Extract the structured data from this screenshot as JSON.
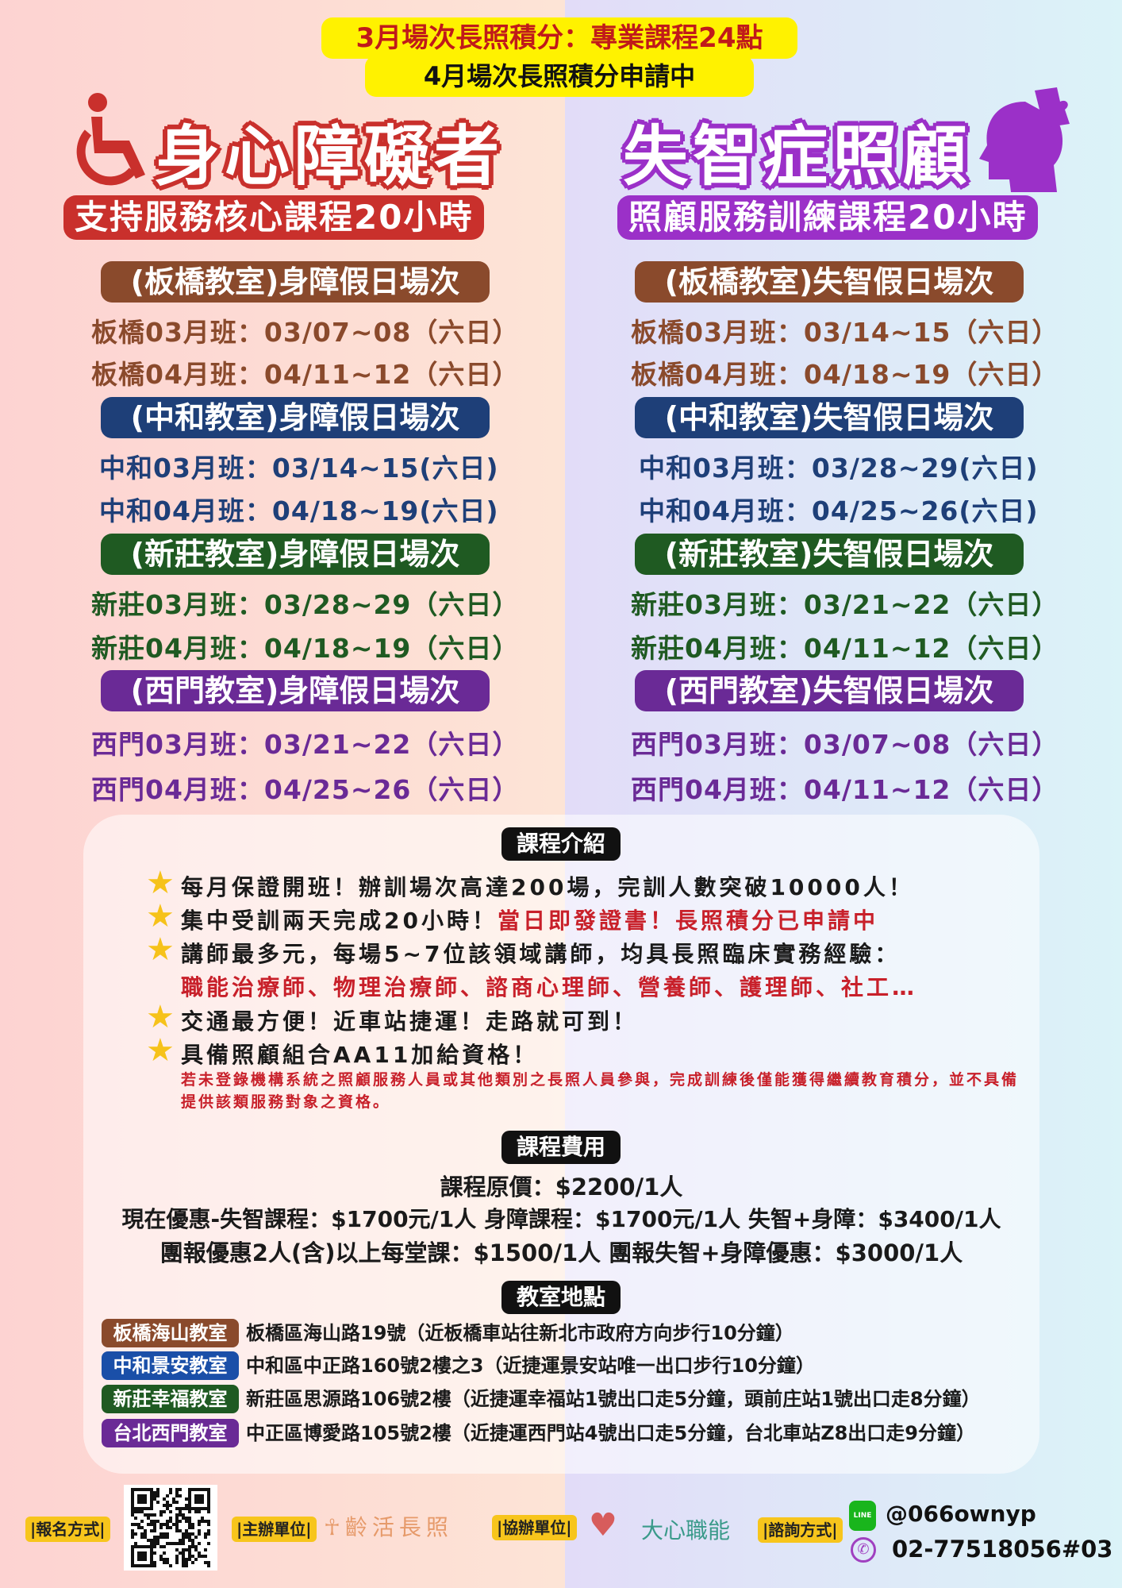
{
  "banner": {
    "line1": "3月場次長照積分：專業課程24點",
    "line2": "4月場次長照積分申請中"
  },
  "left": {
    "title": "身心障礙者",
    "subtitle": "支持服務核心課程20小時",
    "icon": "wheelchair-icon",
    "sections": [
      {
        "title": "(板橋教室)身障假日場次",
        "color": "#8a4a2c",
        "rows": [
          "板橋03月班：03/07~08（六日）",
          "板橋04月班：04/11~12（六日）"
        ]
      },
      {
        "title": "(中和教室)身障假日場次",
        "color": "#1e3f78",
        "rows": [
          "中和03月班：03/14~15(六日)",
          "中和04月班：04/18~19(六日)"
        ]
      },
      {
        "title": "(新莊教室)身障假日場次",
        "color": "#1f5a22",
        "rows": [
          "新莊03月班：03/28~29（六日）",
          "新莊04月班：04/18~19（六日）"
        ]
      },
      {
        "title": "(西門教室)身障假日場次",
        "color": "#6a2a96",
        "rows": [
          "西門03月班：03/21~22（六日）",
          "西門04月班：04/25~26（六日）"
        ]
      }
    ]
  },
  "right": {
    "title": "失智症照顧",
    "subtitle": "照顧服務訓練課程20小時",
    "icon": "head-puzzle-icon",
    "sections": [
      {
        "title": "(板橋教室)失智假日場次",
        "color": "#8a4a2c",
        "rows": [
          "板橋03月班：03/14~15（六日）",
          "板橋04月班：04/18~19（六日）"
        ]
      },
      {
        "title": "(中和教室)失智假日場次",
        "color": "#1e3f78",
        "rows": [
          "中和03月班：03/28~29(六日)",
          "中和04月班：04/25~26(六日)"
        ]
      },
      {
        "title": "(新莊教室)失智假日場次",
        "color": "#1f5a22",
        "rows": [
          "新莊03月班：03/21~22（六日）",
          "新莊04月班：04/11~12（六日）"
        ]
      },
      {
        "title": "(西門教室)失智假日場次",
        "color": "#6a2a96",
        "rows": [
          "西門03月班：03/07~08（六日）",
          "西門04月班：04/11~12（六日）"
        ]
      }
    ]
  },
  "intro": {
    "header": "課程介紹",
    "b1": "每月保證開班！辦訓場次高達200場，完訓人數突破10000人！",
    "b2a": "集中受訓兩天完成20小時！",
    "b2b": "當日即發證書！長照積分已申請中",
    "b3": "講師最多元，每場5~7位該領域講師，均具長照臨床實務經驗：",
    "b3b": "職能治療師、物理治療師、諮商心理師、營養師、護理師、社工…",
    "b4": "交通最方便！近車站捷運！走路就可到！",
    "b5": "具備照顧組合AA11加給資格！",
    "note": "若未登錄機構系統之照顧服務人員或其他類別之長照人員參與，完成訓練後僅能獲得繼續教育積分，並不具備提供該類服務對象之資格。"
  },
  "fees": {
    "header": "課程費用",
    "original": "課程原價：$2200/1人",
    "discount": "現在優惠-失智課程：$1700元/1人 身障課程：$1700元/1人 失智+身障：$3400/1人",
    "group": "團報優惠2人(含)以上每堂課：$1500/1人 團報失智+身障優惠：$3000/1人"
  },
  "locations": {
    "header": "教室地點",
    "items": [
      {
        "name": "板橋海山教室",
        "color": "#8a4a2c",
        "address": "板橋區海山路19號（近板橋車站往新北市政府方向步行10分鐘）"
      },
      {
        "name": "中和景安教室",
        "color": "#1a4fa8",
        "address": "中和區中正路160號2樓之3（近捷運景安站唯一出口步行10分鐘）"
      },
      {
        "name": "新莊幸福教室",
        "color": "#1f5a22",
        "address": "新莊區思源路106號2樓（近捷運幸福站1號出口走5分鐘，頭前庄站1號出口走8分鐘）"
      },
      {
        "name": "台北西門教室",
        "color": "#6a2a96",
        "address": "中正區博愛路105號2樓（近捷運西門站4號出口走5分鐘，台北車站Z8出口走9分鐘）"
      }
    ]
  },
  "footer": {
    "register_label": "|報名方式|",
    "organizer_label": "|主辦單位|",
    "organizer": "齡活長照",
    "coorganizer_label": "|協辦單位|",
    "coorganizer": "大心職能",
    "contact_label": "|諮詢方式|",
    "line_id": "@066ownyp",
    "line_icon_text": "LINE",
    "phone": "02-77518056#03"
  }
}
